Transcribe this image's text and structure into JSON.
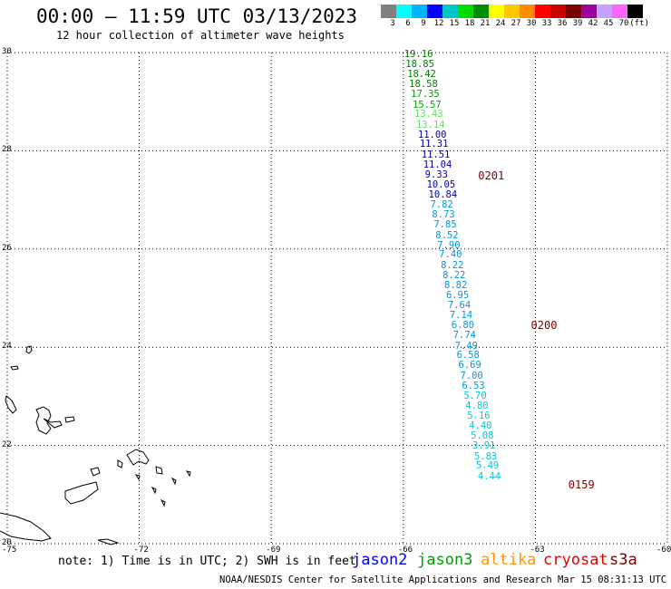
{
  "header": {
    "title": "00:00 – 11:59 UTC 03/13/2023",
    "subtitle": "12 hour collection of altimeter wave heights"
  },
  "colorbar": {
    "colors": [
      "#808080",
      "#00ffff",
      "#00b4ff",
      "#0000ff",
      "#00c8c8",
      "#00dc00",
      "#008c00",
      "#ffff00",
      "#ffc800",
      "#ff8c00",
      "#ff0000",
      "#c80000",
      "#780000",
      "#a000a0",
      "#c8a0ff",
      "#ff64ff",
      "#000000"
    ],
    "labels": [
      "3",
      "6",
      "9",
      "12",
      "15",
      "18",
      "21",
      "24",
      "27",
      "30",
      "33",
      "36",
      "39",
      "42",
      "45",
      "70",
      "(ft)"
    ]
  },
  "axes": {
    "x_ticks": [
      "-75",
      "-72",
      "-69",
      "-66",
      "-63",
      "-60"
    ],
    "y_ticks": [
      "30",
      "28",
      "26",
      "24",
      "22",
      "20"
    ],
    "lon_range": [
      -75,
      -60
    ],
    "lat_range": [
      20,
      30
    ],
    "grid": "dotted"
  },
  "chart_data": {
    "type": "scatter",
    "units": "ft",
    "points": [
      {
        "lon": -65.69,
        "lat": 29.94,
        "swh": "19.16",
        "color": "#007a00"
      },
      {
        "lon": -65.66,
        "lat": 29.74,
        "swh": "18.85",
        "color": "#007a00"
      },
      {
        "lon": -65.62,
        "lat": 29.54,
        "swh": "18.42",
        "color": "#007a00"
      },
      {
        "lon": -65.58,
        "lat": 29.33,
        "swh": "18.58",
        "color": "#007a00"
      },
      {
        "lon": -65.54,
        "lat": 29.13,
        "swh": "17.35",
        "color": "#009a00"
      },
      {
        "lon": -65.5,
        "lat": 28.92,
        "swh": "15.57",
        "color": "#00aa00"
      },
      {
        "lon": -65.46,
        "lat": 28.72,
        "swh": "13.43",
        "color": "#66dd66"
      },
      {
        "lon": -65.42,
        "lat": 28.51,
        "swh": "13.14",
        "color": "#66dd66"
      },
      {
        "lon": -65.38,
        "lat": 28.31,
        "swh": "11.00",
        "color": "#0000b4"
      },
      {
        "lon": -65.34,
        "lat": 28.11,
        "swh": "11.31",
        "color": "#0000b4"
      },
      {
        "lon": -65.3,
        "lat": 27.9,
        "swh": "11.51",
        "color": "#0000b4"
      },
      {
        "lon": -65.26,
        "lat": 27.7,
        "swh": "11.04",
        "color": "#0000b4"
      },
      {
        "lon": -65.22,
        "lat": 27.49,
        "swh": "9.33",
        "color": "#0000b4"
      },
      {
        "lon": -65.18,
        "lat": 27.29,
        "swh": "10.05",
        "color": "#0000b4"
      },
      {
        "lon": -65.14,
        "lat": 27.08,
        "swh": "10.84",
        "color": "#0000b4"
      },
      {
        "lon": -65.1,
        "lat": 26.88,
        "swh": "7.82",
        "color": "#0096dc"
      },
      {
        "lon": -65.06,
        "lat": 26.67,
        "swh": "8.73",
        "color": "#0096dc"
      },
      {
        "lon": -65.02,
        "lat": 26.47,
        "swh": "7.85",
        "color": "#0096dc"
      },
      {
        "lon": -64.98,
        "lat": 26.26,
        "swh": "8.52",
        "color": "#0096dc"
      },
      {
        "lon": -64.94,
        "lat": 26.06,
        "swh": "7.90",
        "color": "#0096dc"
      },
      {
        "lon": -64.9,
        "lat": 25.86,
        "swh": "7.40",
        "color": "#0096dc"
      },
      {
        "lon": -64.86,
        "lat": 25.65,
        "swh": "8.22",
        "color": "#0096dc"
      },
      {
        "lon": -64.82,
        "lat": 25.45,
        "swh": "8.22",
        "color": "#0096dc"
      },
      {
        "lon": -64.78,
        "lat": 25.24,
        "swh": "8.82",
        "color": "#0096dc"
      },
      {
        "lon": -64.74,
        "lat": 25.04,
        "swh": "6.95",
        "color": "#0096dc"
      },
      {
        "lon": -64.7,
        "lat": 24.83,
        "swh": "7.64",
        "color": "#0096dc"
      },
      {
        "lon": -64.66,
        "lat": 24.63,
        "swh": "7.14",
        "color": "#0096dc"
      },
      {
        "lon": -64.62,
        "lat": 24.42,
        "swh": "6.80",
        "color": "#0096dc"
      },
      {
        "lon": -64.58,
        "lat": 24.22,
        "swh": "7.74",
        "color": "#0096dc"
      },
      {
        "lon": -64.54,
        "lat": 24.01,
        "swh": "7.49",
        "color": "#0096dc"
      },
      {
        "lon": -64.5,
        "lat": 23.81,
        "swh": "6.58",
        "color": "#0096dc"
      },
      {
        "lon": -64.46,
        "lat": 23.61,
        "swh": "6.69",
        "color": "#0096dc"
      },
      {
        "lon": -64.42,
        "lat": 23.4,
        "swh": "7.00",
        "color": "#0096dc"
      },
      {
        "lon": -64.38,
        "lat": 23.2,
        "swh": "6.53",
        "color": "#0096dc"
      },
      {
        "lon": -64.34,
        "lat": 22.99,
        "swh": "5.70",
        "color": "#00c8dc"
      },
      {
        "lon": -64.3,
        "lat": 22.79,
        "swh": "4.80",
        "color": "#00c8dc"
      },
      {
        "lon": -64.26,
        "lat": 22.58,
        "swh": "5.16",
        "color": "#00c8dc"
      },
      {
        "lon": -64.22,
        "lat": 22.38,
        "swh": "4.40",
        "color": "#00c8dc"
      },
      {
        "lon": -64.18,
        "lat": 22.17,
        "swh": "5.08",
        "color": "#00c8dc"
      },
      {
        "lon": -64.14,
        "lat": 21.97,
        "swh": "3.91",
        "color": "#00c8dc"
      },
      {
        "lon": -64.1,
        "lat": 21.76,
        "swh": "5.83",
        "color": "#00c8dc"
      },
      {
        "lon": -64.06,
        "lat": 21.56,
        "swh": "5.49",
        "color": "#00c8dc"
      },
      {
        "lon": -64.02,
        "lat": 21.35,
        "swh": "4.44",
        "color": "#00c8dc"
      }
    ],
    "time_labels": [
      {
        "text": "0201",
        "lon": -64.3,
        "lat": 27.5
      },
      {
        "text": "0200",
        "lon": -63.1,
        "lat": 24.45
      },
      {
        "text": "0159",
        "lon": -62.25,
        "lat": 21.2
      }
    ]
  },
  "footer": {
    "note": "note: 1) Time is in UTC; 2) SWH is in feet",
    "satellites": [
      {
        "name": "jason2",
        "color": "#0000ff"
      },
      {
        "name": "jason3",
        "color": "#00a000"
      },
      {
        "name": "altika",
        "color": "#ff9600"
      },
      {
        "name": "cryosat",
        "color": "#e60000"
      },
      {
        "name": "s3a",
        "color": "#780000"
      }
    ],
    "credit": "NOAA/NESDIS Center for Satellite Applications and Research   Mar 15 08:31:13 UTC 2023"
  }
}
